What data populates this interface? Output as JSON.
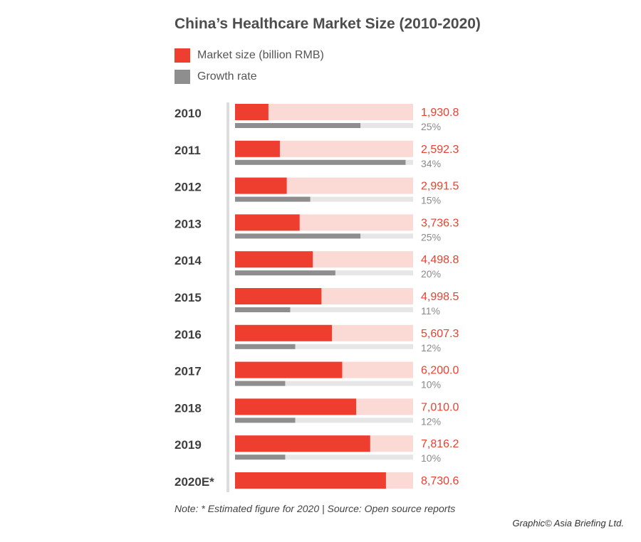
{
  "colors": {
    "market_bar": "#ee3e30",
    "market_track": "#fbd9d5",
    "growth_bar": "#8e8e8e",
    "growth_track": "#e6e6e6",
    "value_text": "#e8412f",
    "percent_text": "#8a8a8a",
    "axis_line": "#dcdcdc"
  },
  "chart_data": {
    "type": "bar",
    "orientation": "horizontal",
    "title": "China’s Healthcare Market Size (2010-2020)",
    "legend": [
      {
        "label": "Market size (billion RMB)",
        "color": "#ee3e30"
      },
      {
        "label": "Growth rate",
        "color": "#8e8e8e"
      }
    ],
    "legend_position": "top-left",
    "categories": [
      "2010",
      "2011",
      "2012",
      "2013",
      "2014",
      "2015",
      "2016",
      "2017",
      "2018",
      "2019",
      "2020E*"
    ],
    "series": [
      {
        "name": "Market size (billion RMB)",
        "values": [
          1930.8,
          2592.3,
          2991.5,
          3736.3,
          4498.8,
          4998.5,
          5607.3,
          6200.0,
          7010.0,
          7816.2,
          8730.6
        ],
        "labels": [
          "1,930.8",
          "2,592.3",
          "2,991.5",
          "3,736.3",
          "4,498.8",
          "4,998.5",
          "5,607.3",
          "6,200.0",
          "7,010.0",
          "7,816.2",
          "8,730.6"
        ],
        "scale_max": 10300
      },
      {
        "name": "Growth rate",
        "values": [
          25,
          34,
          15,
          25,
          20,
          11,
          12,
          10,
          12,
          10,
          null
        ],
        "labels": [
          "25%",
          "34%",
          "15%",
          "25%",
          "20%",
          "11%",
          "12%",
          "10%",
          "12%",
          "10%",
          ""
        ],
        "scale_max": 35.5
      }
    ],
    "grid": false
  },
  "footer": {
    "note": "Note: * Estimated figure for 2020  | Source: Open source reports",
    "credit": "Graphic© Asia Briefing Ltd."
  }
}
